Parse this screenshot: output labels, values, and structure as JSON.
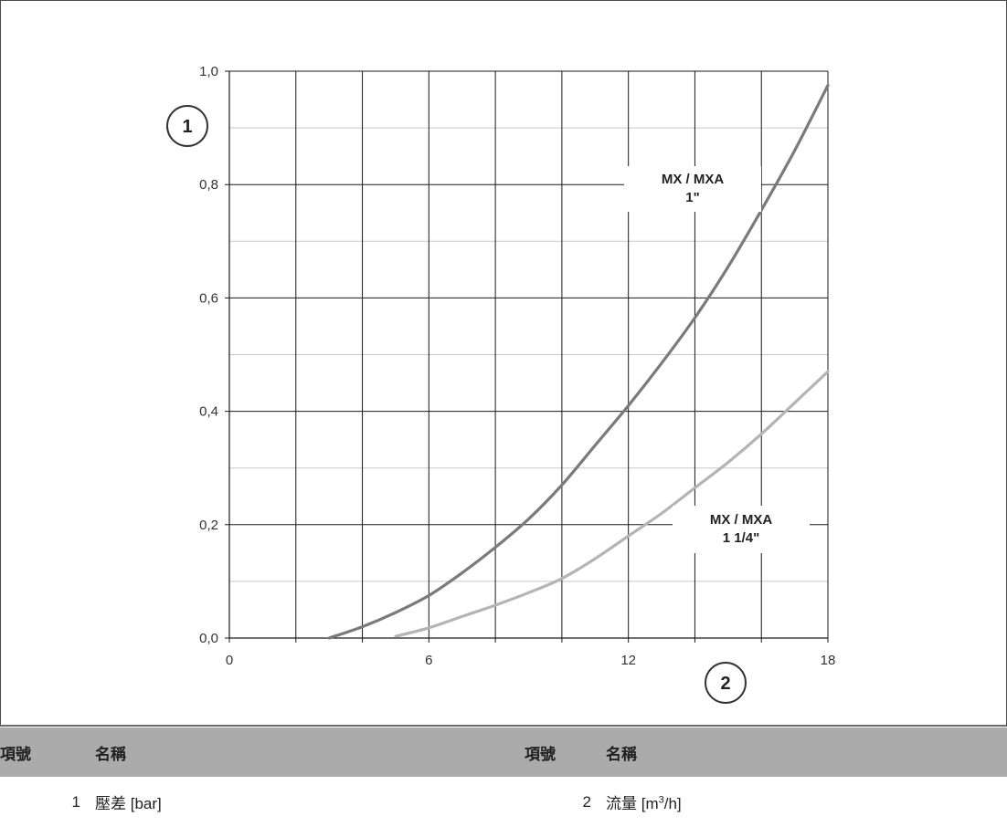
{
  "chart_data": {
    "type": "line",
    "title": "",
    "xlabel": "",
    "ylabel": "",
    "xlim": [
      0,
      18
    ],
    "ylim": [
      0,
      1.0
    ],
    "x_ticks": [
      0,
      6,
      12,
      18
    ],
    "x_tick_labels": [
      "0",
      "6",
      "12",
      "18"
    ],
    "y_ticks": [
      0,
      0.2,
      0.4,
      0.6,
      0.8,
      1.0
    ],
    "y_tick_labels": [
      "0,0",
      "0,2",
      "0,4",
      "0,6",
      "0,8",
      "1,0"
    ],
    "grid": true,
    "series": [
      {
        "name": "MX / MXA 1\"",
        "label_lines": [
          "MX / MXA",
          "1\""
        ],
        "color": "#7a7a7a",
        "x": [
          3.0,
          4.0,
          5.0,
          6.0,
          7.0,
          8.0,
          9.0,
          10.0,
          11.0,
          12.0,
          13.0,
          14.0,
          15.0,
          16.0,
          17.0,
          18.0
        ],
        "y": [
          0.0,
          0.02,
          0.045,
          0.075,
          0.115,
          0.16,
          0.21,
          0.27,
          0.34,
          0.41,
          0.485,
          0.565,
          0.655,
          0.755,
          0.86,
          0.975
        ]
      },
      {
        "name": "MX / MXA 1 1/4\"",
        "label_lines": [
          "MX / MXA",
          "1 1/4\""
        ],
        "color": "#b4b4b4",
        "x": [
          5.0,
          6.0,
          7.0,
          8.0,
          9.0,
          10.0,
          11.0,
          12.0,
          13.0,
          14.0,
          15.0,
          16.0,
          17.0,
          18.0
        ],
        "y": [
          0.003,
          0.018,
          0.038,
          0.058,
          0.08,
          0.105,
          0.14,
          0.18,
          0.22,
          0.265,
          0.31,
          0.36,
          0.415,
          0.47
        ]
      }
    ],
    "callouts": [
      "1",
      "2"
    ]
  },
  "legend": {
    "headers": [
      "項號",
      "名稱",
      "項號",
      "名稱"
    ],
    "rows": [
      {
        "no": "1",
        "name": "壓差 [bar]"
      },
      {
        "no": "2",
        "name_prefix": "流量 [m",
        "name_sup": "3",
        "name_suffix": "/h]"
      }
    ]
  }
}
